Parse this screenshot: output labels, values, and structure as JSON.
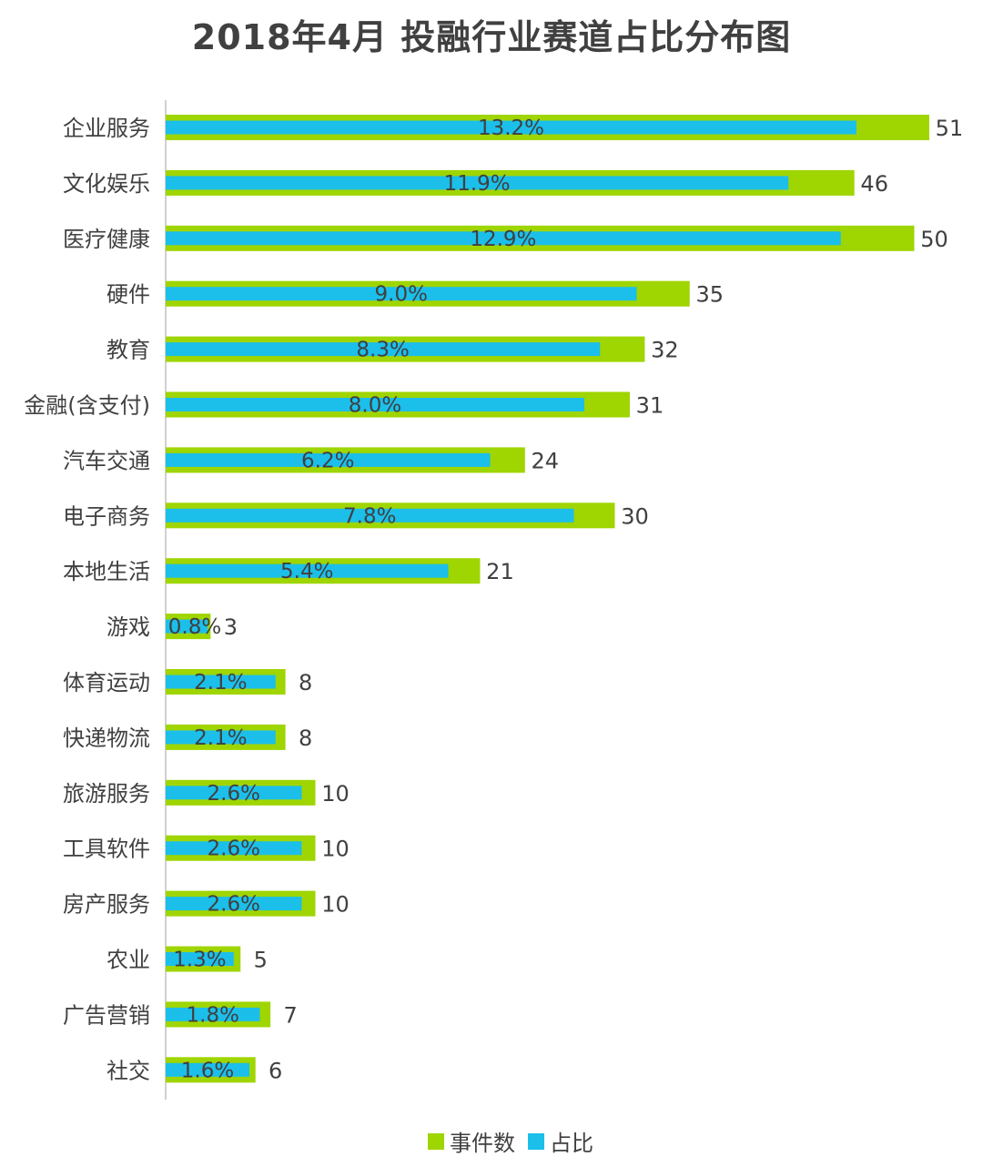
{
  "chart_data": {
    "type": "bar",
    "orientation": "horizontal",
    "title": "2018年4月 投融行业赛道占比分布图",
    "categories": [
      "企业服务",
      "文化娱乐",
      "医疗健康",
      "硬件",
      "教育",
      "金融(含支付)",
      "汽车交通",
      "电子商务",
      "本地生活",
      "游戏",
      "体育运动",
      "快递物流",
      "旅游服务",
      "工具软件",
      "房产服务",
      "农业",
      "广告营销",
      "社交"
    ],
    "series": [
      {
        "name": "事件数",
        "color": "#9FD500",
        "values": [
          51,
          46,
          50,
          35,
          32,
          31,
          24,
          30,
          21,
          3,
          8,
          8,
          10,
          10,
          10,
          5,
          7,
          6
        ]
      },
      {
        "name": "占比",
        "color": "#1BBFEA",
        "values": [
          13.2,
          11.9,
          12.9,
          9.0,
          8.3,
          8.0,
          6.2,
          7.8,
          5.4,
          0.8,
          2.1,
          2.1,
          2.6,
          2.6,
          2.6,
          1.3,
          1.8,
          1.6
        ],
        "labels": [
          "13.2%",
          "11.9%",
          "12.9%",
          "9.0%",
          "8.3%",
          "8.0%",
          "6.2%",
          "7.8%",
          "5.4%",
          "0.8%",
          "2.1%",
          "2.1%",
          "2.6%",
          "2.6%",
          "2.6%",
          "1.3%",
          "1.8%",
          "1.6%"
        ]
      }
    ],
    "legend_position": "bottom",
    "grid": false
  }
}
